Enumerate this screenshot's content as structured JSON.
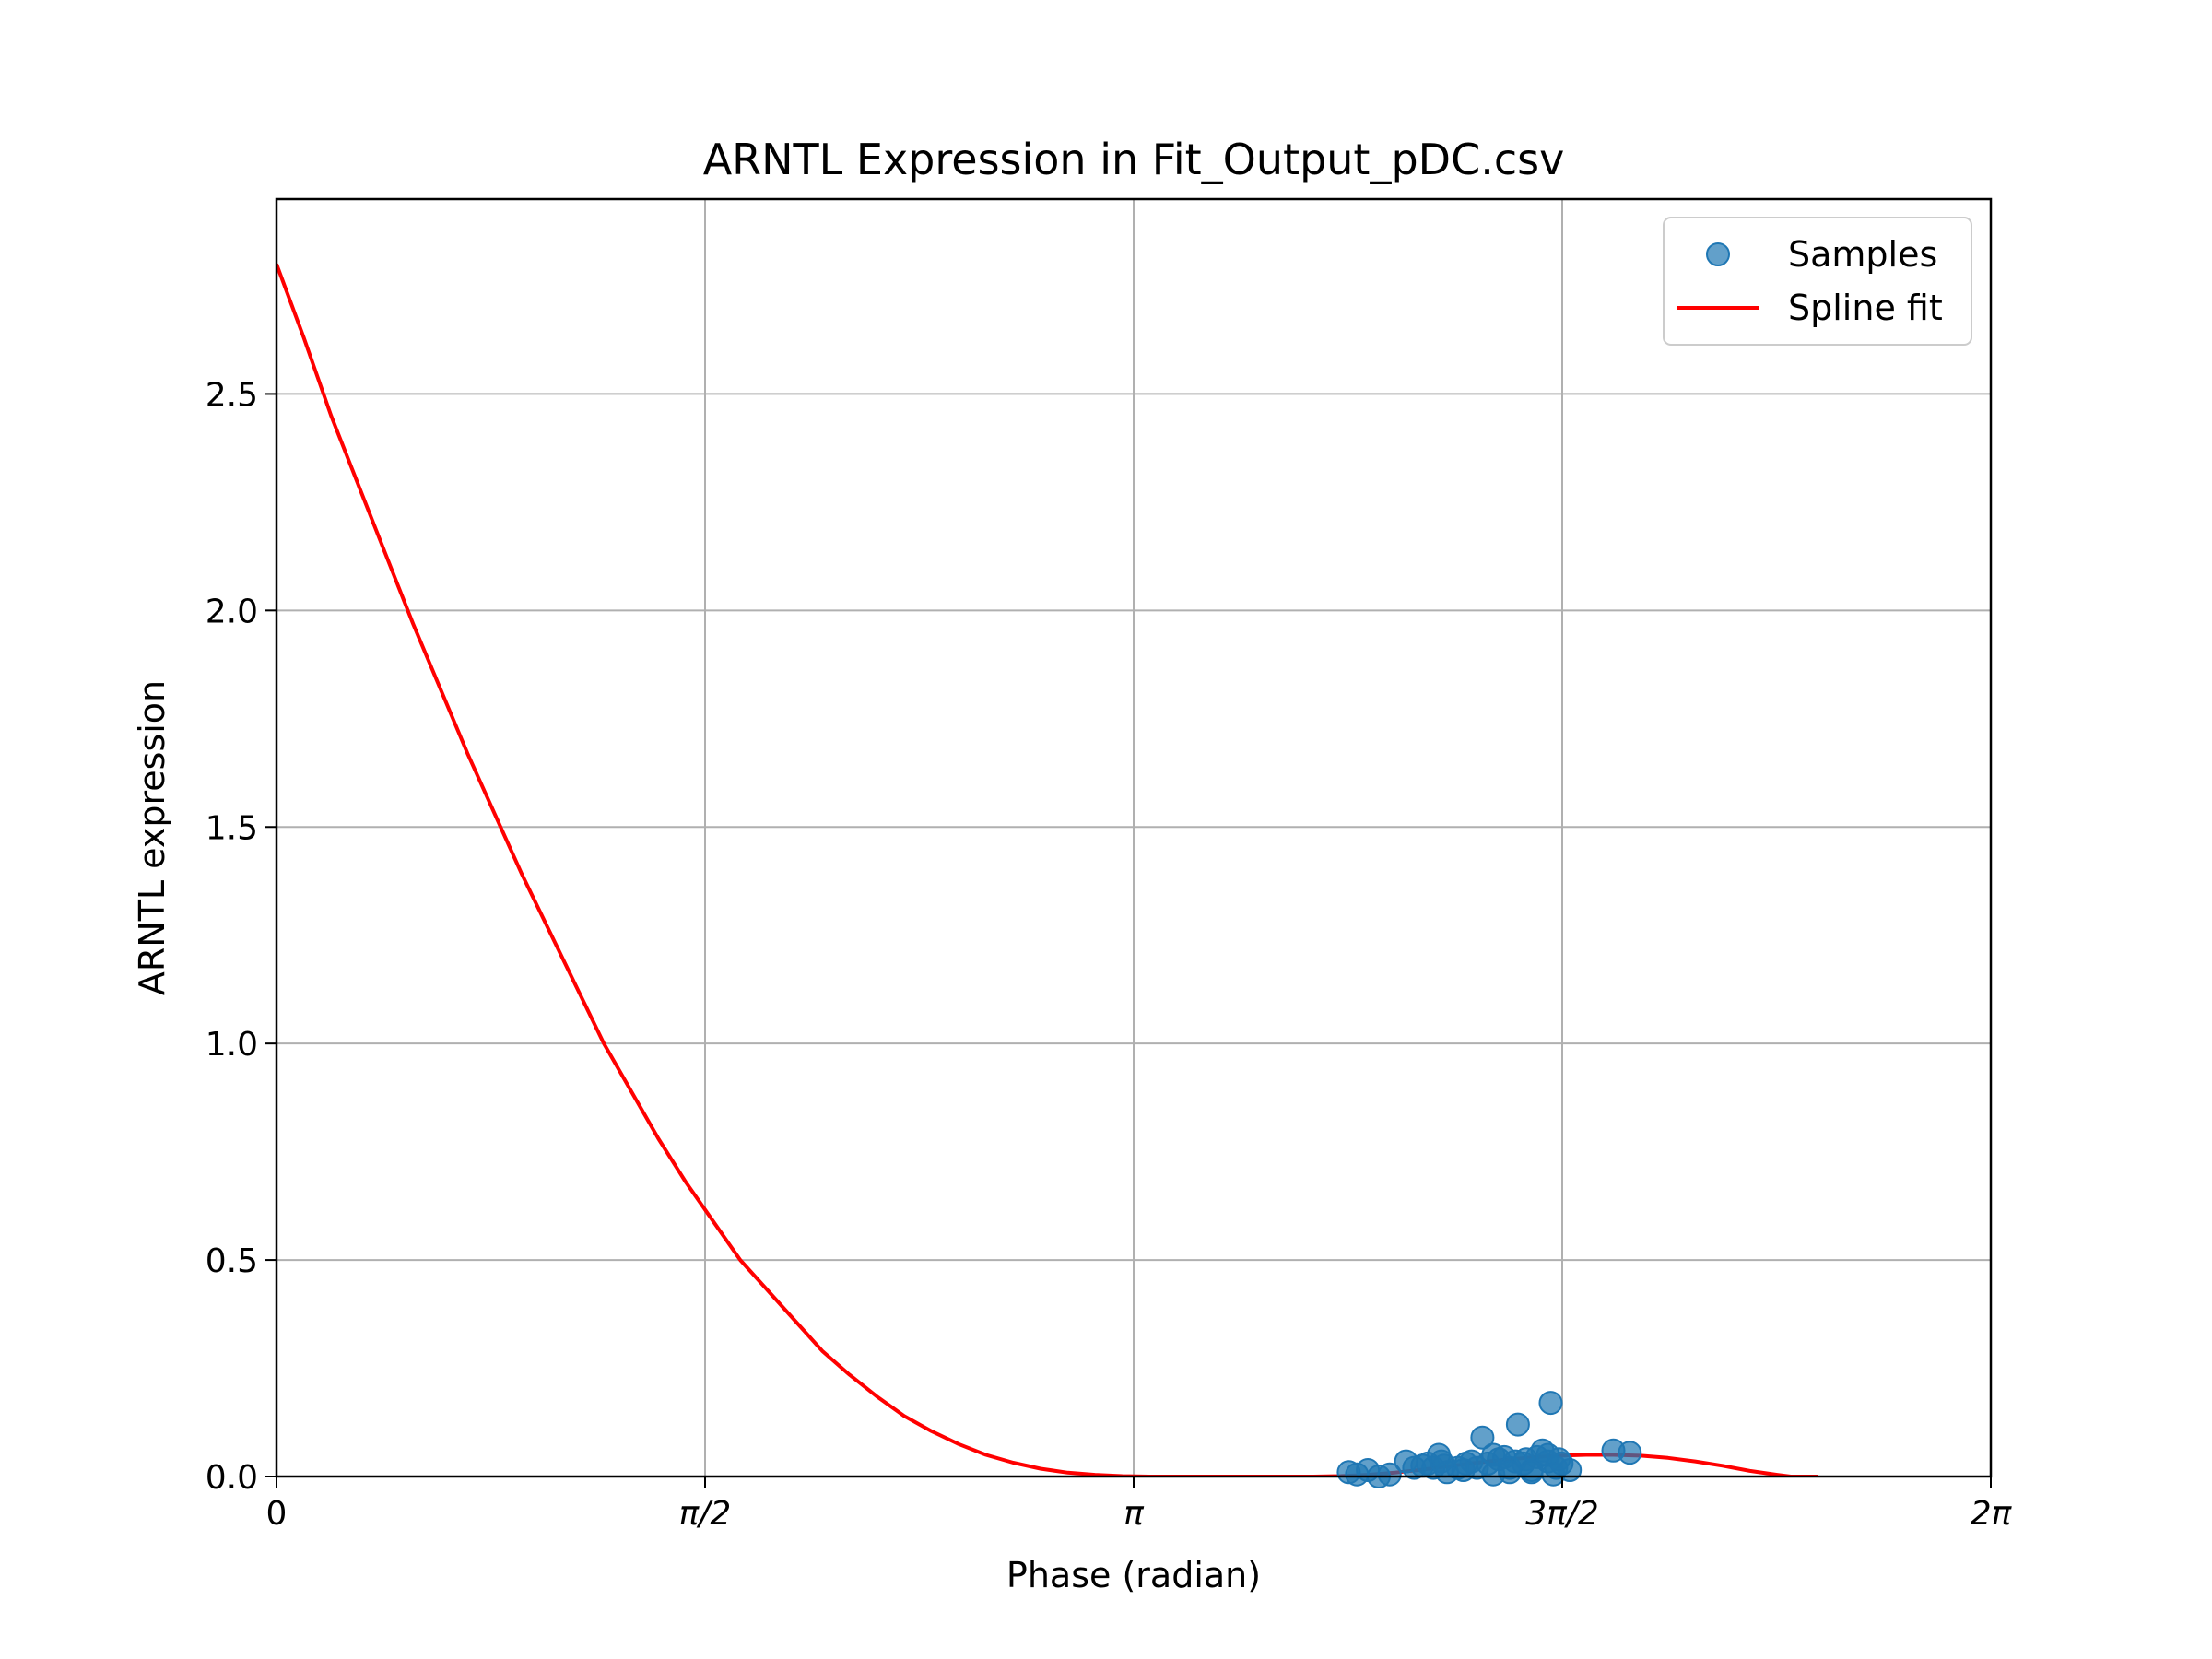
{
  "chart_data": {
    "type": "scatter",
    "title": "ARNTL Expression in Fit_Output_pDC.csv",
    "xlabel": "Phase (radian)",
    "ylabel": "ARNTL expression",
    "xlim": [
      0,
      6.283185
    ],
    "ylim": [
      0,
      2.95
    ],
    "grid": true,
    "legend_position": "top-right",
    "x_ticks": [
      {
        "value": 0,
        "label": "0"
      },
      {
        "value": 1.570796,
        "label": "π/2"
      },
      {
        "value": 3.141593,
        "label": "π"
      },
      {
        "value": 4.712389,
        "label": "3π/2"
      },
      {
        "value": 6.283185,
        "label": "2π"
      }
    ],
    "y_ticks": [
      {
        "value": 0.0,
        "label": "0.0"
      },
      {
        "value": 0.5,
        "label": "0.5"
      },
      {
        "value": 1.0,
        "label": "1.0"
      },
      {
        "value": 1.5,
        "label": "1.5"
      },
      {
        "value": 2.0,
        "label": "2.0"
      },
      {
        "value": 2.5,
        "label": "2.5"
      }
    ],
    "series": [
      {
        "name": "Samples",
        "kind": "scatter",
        "color": "#1f77b4",
        "points": [
          [
            3.93,
            0.01
          ],
          [
            3.96,
            0.005
          ],
          [
            4.0,
            0.015
          ],
          [
            4.04,
            0.0
          ],
          [
            4.08,
            0.005
          ],
          [
            4.14,
            0.035
          ],
          [
            4.17,
            0.02
          ],
          [
            4.2,
            0.025
          ],
          [
            4.22,
            0.03
          ],
          [
            4.24,
            0.02
          ],
          [
            4.26,
            0.05
          ],
          [
            4.27,
            0.035
          ],
          [
            4.29,
            0.01
          ],
          [
            4.33,
            0.02
          ],
          [
            4.36,
            0.03
          ],
          [
            4.38,
            0.035
          ],
          [
            4.4,
            0.02
          ],
          [
            4.42,
            0.09
          ],
          [
            4.44,
            0.03
          ],
          [
            4.46,
            0.05
          ],
          [
            4.48,
            0.04
          ],
          [
            4.5,
            0.045
          ],
          [
            4.52,
            0.02
          ],
          [
            4.54,
            0.035
          ],
          [
            4.55,
            0.12
          ],
          [
            4.57,
            0.03
          ],
          [
            4.58,
            0.04
          ],
          [
            4.6,
            0.015
          ],
          [
            4.62,
            0.045
          ],
          [
            4.64,
            0.06
          ],
          [
            4.66,
            0.035
          ],
          [
            4.67,
            0.17
          ],
          [
            4.69,
            0.02
          ],
          [
            4.7,
            0.04
          ],
          [
            4.71,
            0.03
          ],
          [
            4.74,
            0.015
          ],
          [
            4.9,
            0.06
          ],
          [
            4.96,
            0.055
          ],
          [
            4.46,
            0.005
          ],
          [
            4.6,
            0.01
          ],
          [
            4.35,
            0.015
          ],
          [
            4.66,
            0.05
          ],
          [
            4.52,
            0.01
          ],
          [
            4.68,
            0.005
          ],
          [
            4.28,
            0.025
          ]
        ]
      },
      {
        "name": "Spline fit",
        "kind": "line",
        "color": "#ff0000",
        "points": [
          [
            0.0,
            2.8
          ],
          [
            0.1,
            2.63
          ],
          [
            0.2,
            2.45
          ],
          [
            0.3,
            2.29
          ],
          [
            0.4,
            2.13
          ],
          [
            0.5,
            1.97
          ],
          [
            0.6,
            1.82
          ],
          [
            0.7,
            1.67
          ],
          [
            0.8,
            1.53
          ],
          [
            0.9,
            1.39
          ],
          [
            1.0,
            1.26
          ],
          [
            1.1,
            1.13
          ],
          [
            1.2,
            1.0
          ],
          [
            1.3,
            0.89
          ],
          [
            1.4,
            0.78
          ],
          [
            1.5,
            0.68
          ],
          [
            1.6,
            0.59
          ],
          [
            1.7,
            0.5
          ],
          [
            1.8,
            0.43
          ],
          [
            1.9,
            0.36
          ],
          [
            2.0,
            0.29
          ],
          [
            2.1,
            0.235
          ],
          [
            2.2,
            0.185
          ],
          [
            2.3,
            0.14
          ],
          [
            2.4,
            0.105
          ],
          [
            2.5,
            0.075
          ],
          [
            2.6,
            0.05
          ],
          [
            2.7,
            0.032
          ],
          [
            2.8,
            0.018
          ],
          [
            2.9,
            0.009
          ],
          [
            3.0,
            0.004
          ],
          [
            3.1,
            0.001
          ],
          [
            3.2,
            0.0
          ],
          [
            3.35,
            0.0
          ],
          [
            3.5,
            0.0
          ],
          [
            3.65,
            0.0
          ],
          [
            3.8,
            0.0
          ],
          [
            3.9,
            0.001
          ],
          [
            4.0,
            0.004
          ],
          [
            4.1,
            0.009
          ],
          [
            4.2,
            0.016
          ],
          [
            4.3,
            0.024
          ],
          [
            4.4,
            0.032
          ],
          [
            4.5,
            0.039
          ],
          [
            4.6,
            0.044
          ],
          [
            4.7,
            0.048
          ],
          [
            4.8,
            0.05
          ],
          [
            4.9,
            0.05
          ],
          [
            5.0,
            0.048
          ],
          [
            5.1,
            0.043
          ],
          [
            5.2,
            0.035
          ],
          [
            5.3,
            0.025
          ],
          [
            5.4,
            0.013
          ],
          [
            5.5,
            0.004
          ],
          [
            5.55,
            0.0
          ],
          [
            5.65,
            0.0
          ]
        ]
      }
    ]
  }
}
